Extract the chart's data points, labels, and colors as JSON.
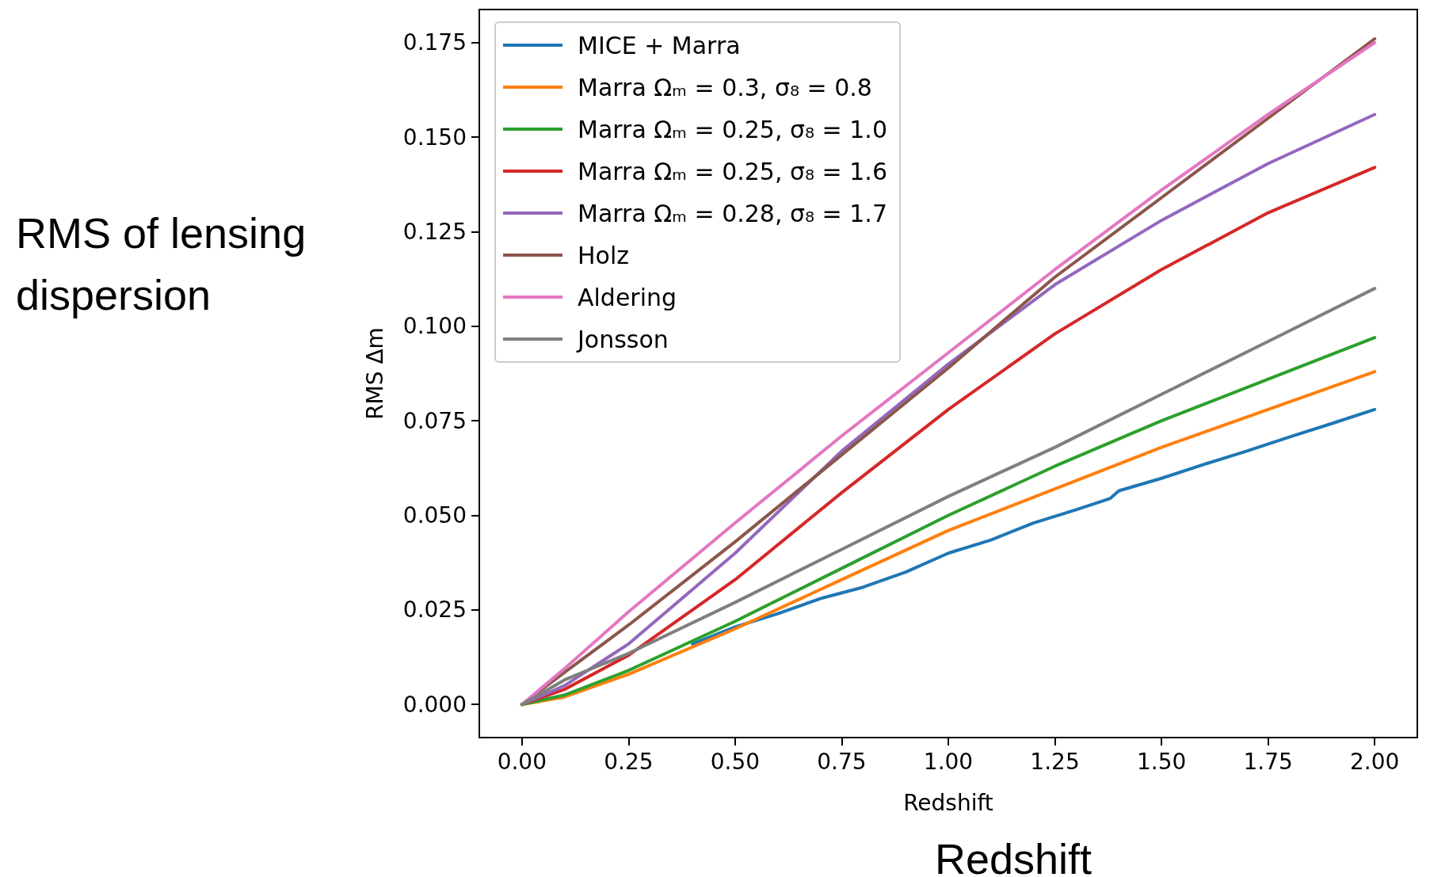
{
  "chart_data": {
    "type": "line",
    "xlabel": "Redshift",
    "ylabel": "RMS Δm",
    "annotations": [
      "RMS of lensing dispersion",
      "Redshift"
    ],
    "xlim": [
      -0.1,
      2.1
    ],
    "xticks": [
      {
        "value": 0,
        "label": "0.00"
      },
      0.25,
      {
        "value": 0.5,
        "label": "0.50"
      },
      0.75,
      {
        "value": 1,
        "label": "1.00"
      },
      1.25,
      {
        "value": 1.5,
        "label": "1.50"
      },
      1.75,
      {
        "value": 2,
        "label": "2.00"
      }
    ],
    "ylim": [
      -0.00875,
      0.18375
    ],
    "yticks": [
      {
        "value": 0,
        "label": "0.000"
      },
      0.025,
      {
        "value": 0.05,
        "label": "0.050"
      },
      0.075,
      {
        "value": 0.1,
        "label": "0.100"
      },
      0.125,
      {
        "value": 0.15,
        "label": "0.150"
      },
      0.175
    ],
    "grid": false,
    "legend": "top left",
    "marker": "none",
    "line_style": "solid",
    "series": [
      {
        "name": "MICE + Marra",
        "color": "#1f77b4",
        "x": [
          0.4,
          0.5,
          0.6,
          0.7,
          0.8,
          0.9,
          1.0,
          1.1,
          1.2,
          1.3,
          1.38,
          1.4,
          1.5,
          1.6,
          1.7,
          1.8,
          1.9,
          2.0
        ],
        "values": [
          0.016,
          0.0205,
          0.024,
          0.028,
          0.031,
          0.035,
          0.04,
          0.0435,
          0.048,
          0.0515,
          0.0545,
          0.0565,
          0.0598,
          0.0635,
          0.067,
          0.0707,
          0.0743,
          0.078
        ]
      },
      {
        "name": "Marra Ωₘ = 0.3, σ₈ = 0.8",
        "color": "#ff7f0e",
        "x": [
          0,
          0.1,
          0.25,
          0.5,
          0.75,
          1.0,
          1.25,
          1.5,
          1.75,
          2.0
        ],
        "values": [
          0,
          0.002,
          0.008,
          0.02,
          0.033,
          0.046,
          0.057,
          0.068,
          0.078,
          0.088
        ]
      },
      {
        "name": "Marra Ωₘ = 0.25, σ₈ = 1.0",
        "color": "#2ca02c",
        "x": [
          0,
          0.1,
          0.25,
          0.5,
          0.75,
          1.0,
          1.25,
          1.5,
          1.75,
          2.0
        ],
        "values": [
          0,
          0.0025,
          0.009,
          0.022,
          0.036,
          0.05,
          0.063,
          0.075,
          0.086,
          0.097
        ]
      },
      {
        "name": "Marra Ωₘ = 0.25, σ₈ = 1.6",
        "color": "#d62728",
        "x": [
          0,
          0.1,
          0.25,
          0.5,
          0.75,
          1.0,
          1.25,
          1.5,
          1.75,
          2.0
        ],
        "values": [
          0,
          0.004,
          0.013,
          0.033,
          0.056,
          0.078,
          0.098,
          0.115,
          0.13,
          0.142
        ]
      },
      {
        "name": "Marra Ωₘ = 0.28, σ₈ = 1.7",
        "color": "#9467bd",
        "x": [
          0,
          0.1,
          0.25,
          0.5,
          0.75,
          1.0,
          1.25,
          1.5,
          1.75,
          2.0
        ],
        "values": [
          0,
          0.005,
          0.016,
          0.04,
          0.067,
          0.09,
          0.111,
          0.128,
          0.143,
          0.156
        ]
      },
      {
        "name": "Holz",
        "color": "#8c564b",
        "x": [
          0,
          0.1,
          0.25,
          0.5,
          0.75,
          1.0,
          1.25,
          1.5,
          1.75,
          2.0
        ],
        "values": [
          0,
          0.0085,
          0.021,
          0.043,
          0.066,
          0.089,
          0.113,
          0.134,
          0.155,
          0.176
        ]
      },
      {
        "name": "Aldering",
        "color": "#e377c2",
        "x": [
          0,
          0.1,
          0.25,
          0.5,
          0.75,
          1.0,
          1.25,
          1.5,
          1.75,
          2.0
        ],
        "values": [
          0,
          0.0095,
          0.0245,
          0.048,
          0.071,
          0.093,
          0.115,
          0.136,
          0.156,
          0.175
        ]
      },
      {
        "name": "Jonsson",
        "color": "#7f7f7f",
        "x": [
          0,
          0.1,
          0.25,
          0.5,
          0.75,
          1.0,
          1.25,
          1.5,
          1.75,
          2.0
        ],
        "values": [
          0,
          0.0065,
          0.0135,
          0.027,
          0.041,
          0.055,
          0.068,
          0.082,
          0.096,
          0.11
        ]
      }
    ]
  }
}
